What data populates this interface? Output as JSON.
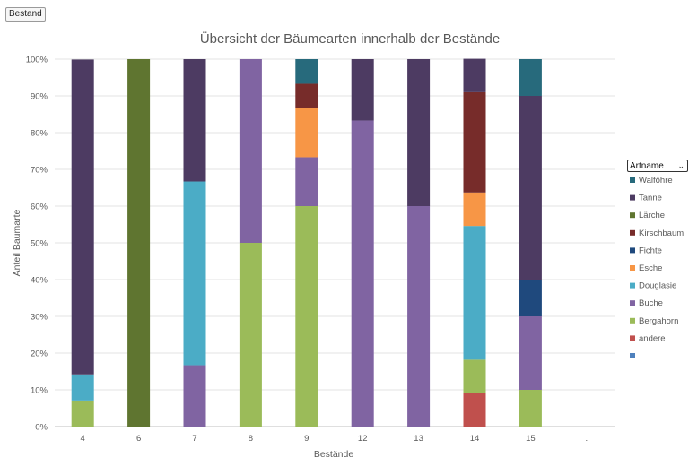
{
  "filter": {
    "label": "Bestand"
  },
  "legend_header": {
    "label": "Artname",
    "chevron": "⌄"
  },
  "chart_data": {
    "type": "bar",
    "stacked": true,
    "percent": true,
    "title": "Übersicht der Bäumearten innerhalb der Bestände",
    "xlabel": "Bestände",
    "ylabel": "Anteil Baumarte",
    "ylim": [
      0,
      100
    ],
    "yticks": [
      "0%",
      "10%",
      "20%",
      "30%",
      "40%",
      "50%",
      "60%",
      "70%",
      "80%",
      "90%",
      "100%"
    ],
    "grid": true,
    "legend": "right",
    "categories": [
      "4",
      "6",
      "7",
      "8",
      "9",
      "12",
      "13",
      "14",
      "15",
      "."
    ],
    "series": [
      {
        "name": "andere",
        "color": "#c0504d",
        "values": [
          0,
          0,
          0,
          0,
          0,
          0,
          0,
          9.1,
          0,
          0
        ]
      },
      {
        "name": "Bergahorn",
        "color": "#9bbb59",
        "values": [
          7.1,
          0,
          0,
          50,
          60,
          0,
          0,
          9.1,
          10,
          0
        ]
      },
      {
        "name": "Buche",
        "color": "#8064a2",
        "values": [
          0,
          0,
          16.7,
          50,
          13.3,
          83.3,
          60,
          0,
          20,
          0
        ]
      },
      {
        "name": "Douglasie",
        "color": "#4bacc6",
        "values": [
          7.1,
          0,
          50,
          0,
          0,
          0,
          0,
          36.4,
          0,
          0
        ]
      },
      {
        "name": "Esche",
        "color": "#f79646",
        "values": [
          0,
          0,
          0,
          0,
          13.3,
          0,
          0,
          9.1,
          0,
          0
        ]
      },
      {
        "name": "Fichte",
        "color": "#1f497d",
        "values": [
          0,
          0,
          0,
          0,
          0,
          0,
          0,
          0,
          10,
          0
        ]
      },
      {
        "name": "Kirschbaum",
        "color": "#772c2a",
        "values": [
          0,
          0,
          0,
          0,
          6.7,
          0,
          0,
          27.3,
          0,
          0
        ]
      },
      {
        "name": "Lärche",
        "color": "#5f7530",
        "values": [
          0,
          100,
          0,
          0,
          0,
          0,
          0,
          0,
          0,
          0
        ]
      },
      {
        "name": "Tanne",
        "color": "#4d3b62",
        "values": [
          85.7,
          0,
          33.3,
          0,
          0,
          16.7,
          40,
          9.1,
          50,
          0
        ]
      },
      {
        "name": "Walföhre",
        "color": "#276a7c",
        "values": [
          0,
          0,
          0,
          0,
          6.7,
          0,
          0,
          0,
          10,
          0
        ]
      },
      {
        "name": ".",
        "color": "#4f81bd",
        "values": [
          0,
          0,
          0,
          0,
          0,
          0,
          0,
          0,
          0,
          0
        ]
      }
    ],
    "legend_order": [
      "Walföhre",
      "Tanne",
      "Lärche",
      "Kirschbaum",
      "Fichte",
      "Esche",
      "Douglasie",
      "Buche",
      "Bergahorn",
      "andere",
      "."
    ]
  }
}
